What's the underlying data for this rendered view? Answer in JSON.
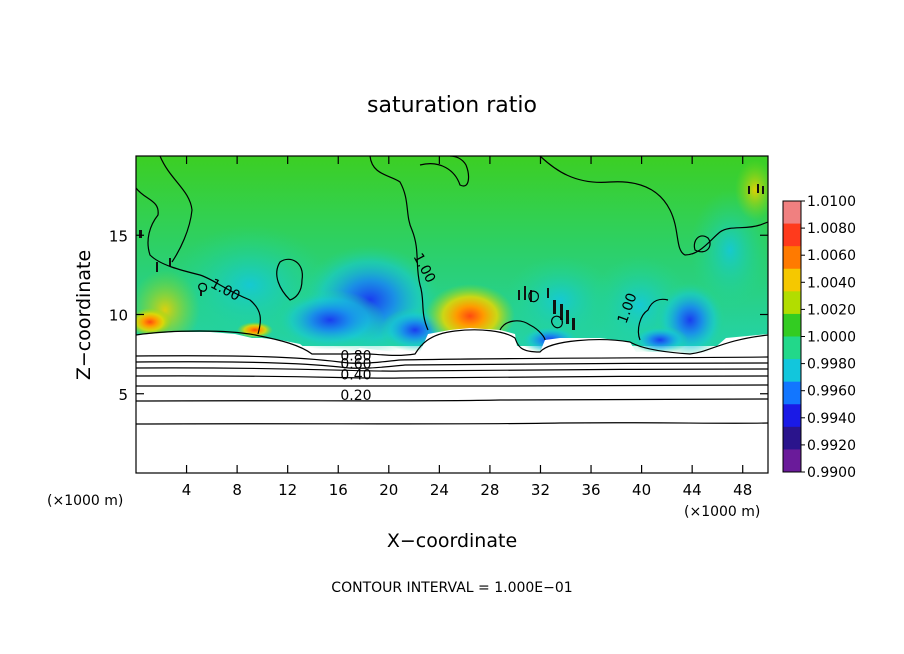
{
  "chart_data": {
    "type": "heatmap",
    "title": "saturation ratio",
    "xlabel": "X−coordinate",
    "ylabel": "Z−coordinate",
    "x_unit_left": "(×1000 m)",
    "x_unit_right": "(×1000 m)",
    "footer": "CONTOUR INTERVAL = 1.000E−01",
    "xlim": [
      0,
      50
    ],
    "ylim": [
      0,
      20
    ],
    "x_ticks": [
      4,
      8,
      12,
      16,
      20,
      24,
      28,
      32,
      36,
      40,
      44,
      48
    ],
    "y_ticks": [
      5,
      10,
      15
    ],
    "colorbar": {
      "labels": [
        "1.0100",
        "1.0080",
        "1.0060",
        "1.0040",
        "1.0020",
        "1.0000",
        "0.9980",
        "0.9960",
        "0.9940",
        "0.9920",
        "0.9900"
      ],
      "colors": [
        "#f08080",
        "#ff3a1c",
        "#ff7a00",
        "#f5c800",
        "#b2dd00",
        "#33cc22",
        "#22d88a",
        "#12c6dc",
        "#1276ff",
        "#1a1ae6",
        "#2a148c",
        "#6a1b9a"
      ]
    },
    "contour_labels": [
      {
        "text": "1.00",
        "x": 6.9,
        "z": 11.3
      },
      {
        "text": "1.00",
        "x": 22.5,
        "z": 12.8
      },
      {
        "text": "1.00",
        "x": 39.2,
        "z": 10.3
      },
      {
        "text": "0.80",
        "x": 17.4,
        "z": 7.1
      },
      {
        "text": "0.60",
        "x": 17.4,
        "z": 6.6
      },
      {
        "text": "0.40",
        "x": 17.4,
        "z": 5.9
      },
      {
        "text": "0.20",
        "x": 17.4,
        "z": 4.6
      }
    ],
    "saturation_top_z": 8.7
  }
}
